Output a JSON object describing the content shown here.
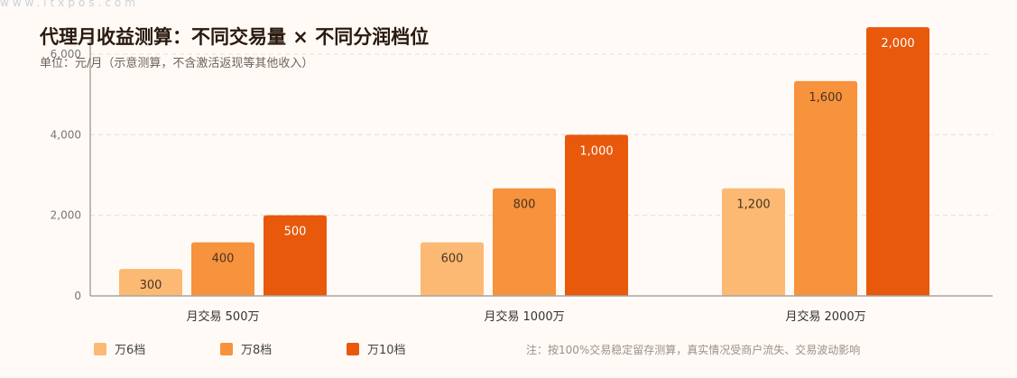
{
  "watermark": "www.ltxpos.com",
  "colors": {
    "background": "#FFFAF6",
    "title": "#2A1A0F",
    "grid": "#E6DED6",
    "axis": "#A9A4A0"
  },
  "chart_data": {
    "type": "bar",
    "title": "代理月收益测算：不同交易量 × 不同分润档位",
    "subtitle": "单位：元/月（示意测算，不含激活返现等其他收入）",
    "xlabel": "",
    "ylabel": "",
    "categories": [
      "月交易 500万",
      "月交易 1000万",
      "月交易 2000万"
    ],
    "series": [
      {
        "name": "万6档",
        "values": [
          300,
          600,
          1200
        ],
        "axis_values": [
          670,
          1330,
          2670
        ],
        "color": "#FCB973",
        "label_color": "#4A3322"
      },
      {
        "name": "万8档",
        "values": [
          400,
          800,
          1600
        ],
        "axis_values": [
          1330,
          2670,
          5330
        ],
        "color": "#F7923D",
        "label_color": "#4A3322"
      },
      {
        "name": "万10档",
        "values": [
          500,
          1000,
          2000
        ],
        "axis_values": [
          2000,
          4000,
          6670
        ],
        "color": "#E8590C",
        "label_color": "#FFFFFF"
      }
    ],
    "yticks": [
      0,
      2000,
      4000,
      6000
    ],
    "ylim": [
      0,
      6000
    ],
    "grid": true,
    "legend": "bottom-left",
    "note": "注：按100%交易稳定留存测算，真实情况受商户流失、交易波动影响"
  }
}
